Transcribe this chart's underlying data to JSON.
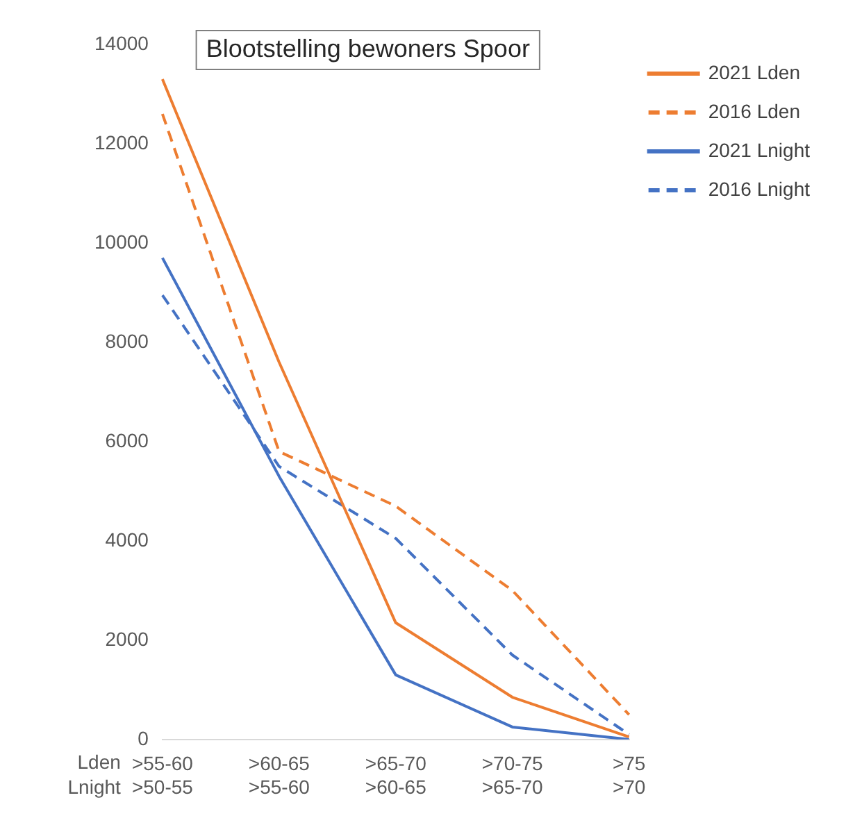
{
  "chart_data": {
    "type": "line",
    "title": "Blootstelling bewoners Spoor",
    "categories": [
      ">55-60\n>50-55",
      ">60-65\n>55-60",
      ">65-70\n>60-65",
      ">70-75\n>65-70",
      ">75\n>70"
    ],
    "annotations": [
      "Lden",
      "Lnight"
    ],
    "series": [
      {
        "name": "2021 Lden",
        "color": "#ed7d31",
        "line_style": "solid",
        "values": [
          13300,
          7600,
          2350,
          850,
          50
        ]
      },
      {
        "name": "2016 Lden",
        "color": "#ed7d31",
        "line_style": "dashed",
        "values": [
          12600,
          5800,
          4700,
          3000,
          500
        ]
      },
      {
        "name": "2021 Lnight",
        "color": "#4472c4",
        "line_style": "solid",
        "values": [
          9700,
          5300,
          1300,
          250,
          0
        ]
      },
      {
        "name": "2016 Lnight",
        "color": "#4472c4",
        "line_style": "dashed",
        "values": [
          8950,
          5500,
          4050,
          1700,
          100
        ]
      }
    ],
    "ylim": [
      0,
      14000
    ],
    "yticks": [
      0,
      2000,
      4000,
      6000,
      8000,
      10000,
      12000,
      14000
    ],
    "grid": false,
    "legend": "top right",
    "marker": "none"
  }
}
